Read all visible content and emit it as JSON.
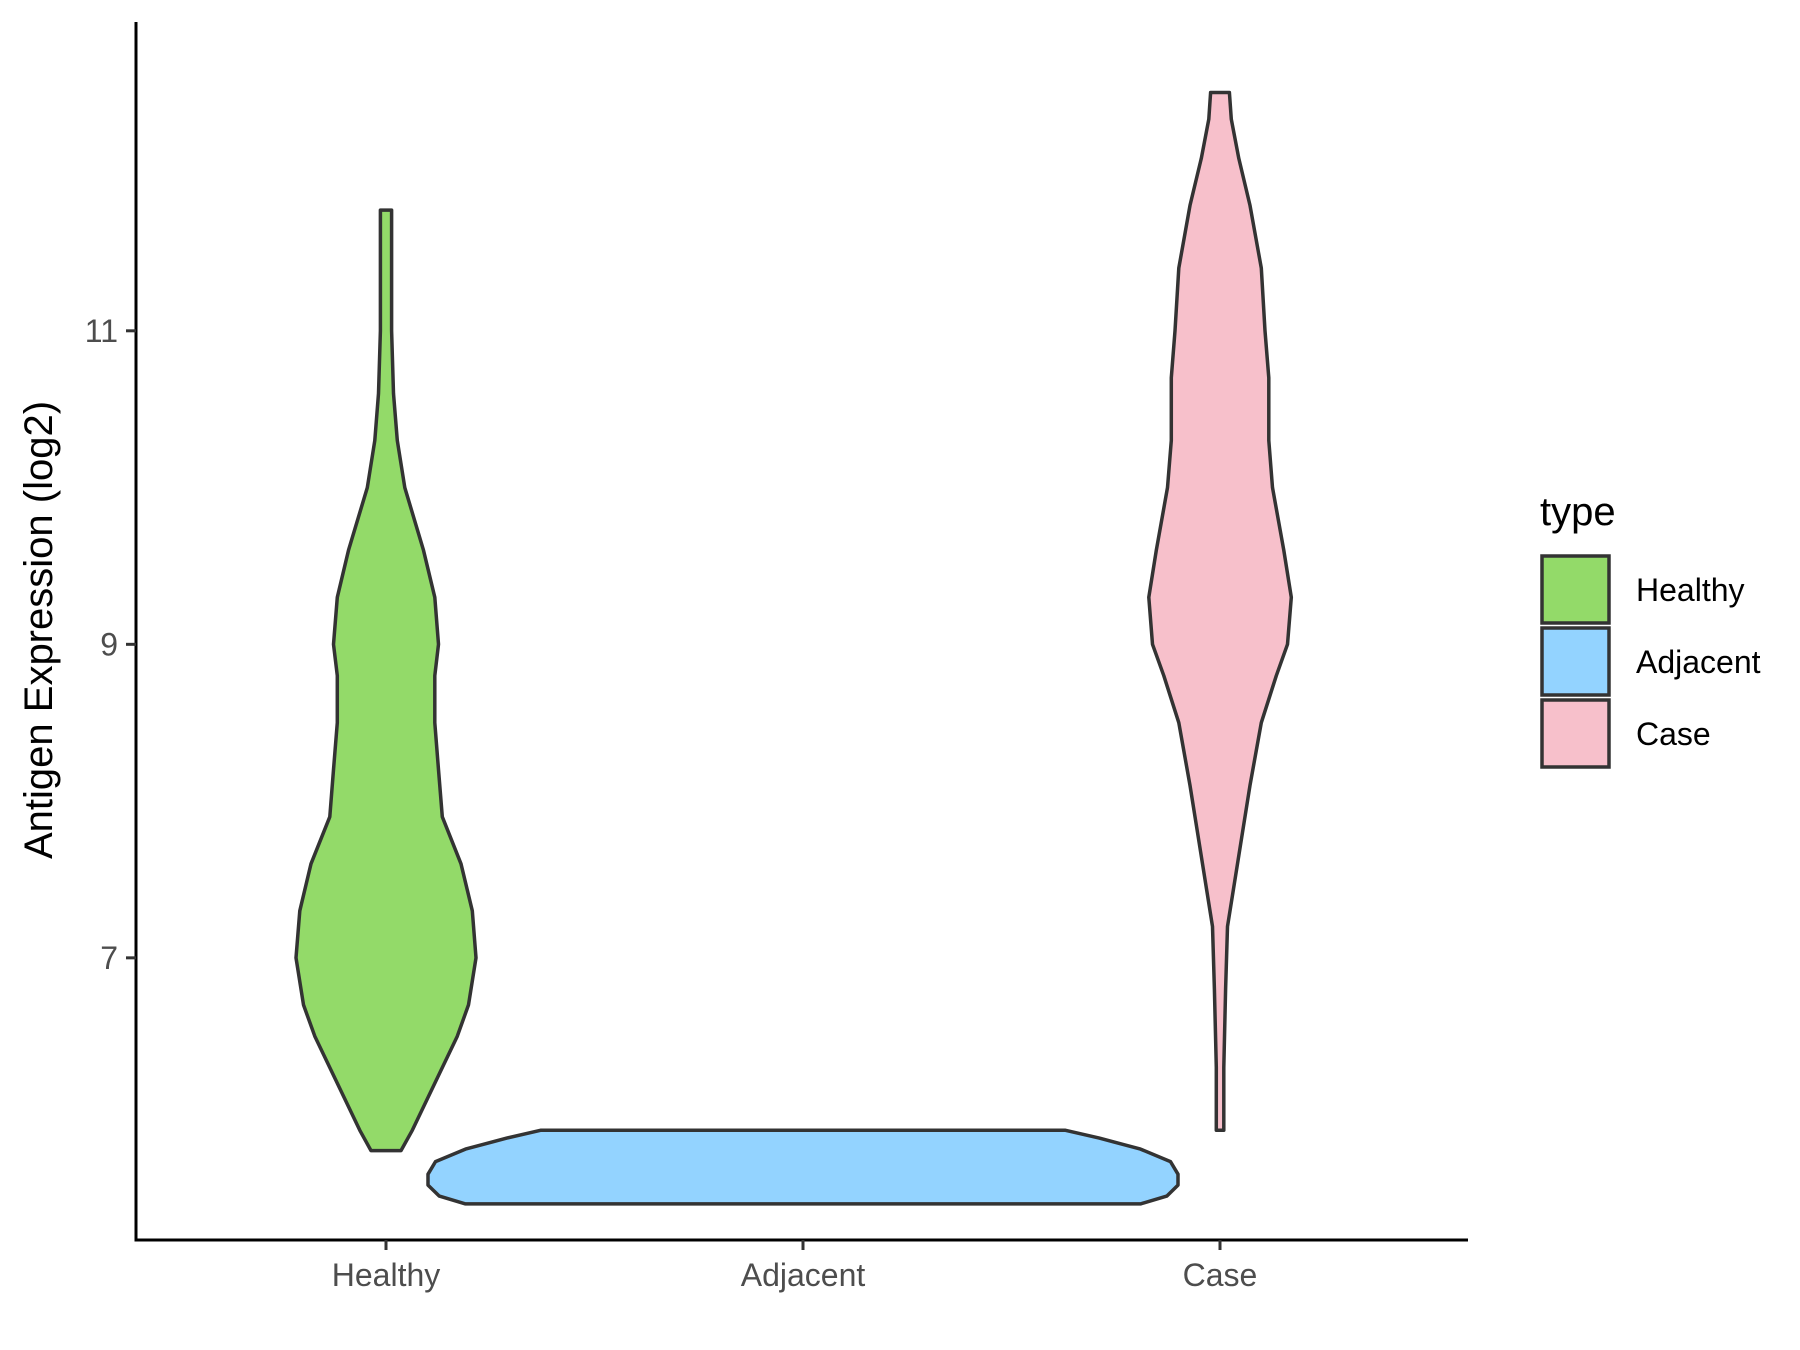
{
  "chart_data": {
    "type": "violin",
    "title": "",
    "xlabel": "",
    "ylabel": "Antigen Expression (log2)",
    "categories": [
      "Healthy",
      "Adjacent",
      "Case"
    ],
    "y_ticks": [
      7,
      9,
      11
    ],
    "ylim": [
      5.2,
      12.97
    ],
    "legend": {
      "title": "type",
      "position": "right",
      "entries": [
        "Healthy",
        "Adjacent",
        "Case"
      ]
    },
    "colors": {
      "Healthy": "#93DA69",
      "Adjacent": "#93D3FF",
      "Case": "#F7C0CB"
    },
    "violins": [
      {
        "name": "Healthy",
        "y_min": 5.77,
        "y_max": 11.77,
        "density_profile": [
          [
            5.77,
            0.04
          ],
          [
            5.9,
            0.07
          ],
          [
            6.2,
            0.13
          ],
          [
            6.5,
            0.19
          ],
          [
            6.7,
            0.22
          ],
          [
            7.0,
            0.24
          ],
          [
            7.3,
            0.23
          ],
          [
            7.6,
            0.2
          ],
          [
            7.9,
            0.15
          ],
          [
            8.2,
            0.14
          ],
          [
            8.5,
            0.13
          ],
          [
            8.8,
            0.13
          ],
          [
            9.0,
            0.14
          ],
          [
            9.3,
            0.13
          ],
          [
            9.6,
            0.1
          ],
          [
            10.0,
            0.05
          ],
          [
            10.3,
            0.03
          ],
          [
            10.6,
            0.02
          ],
          [
            11.0,
            0.015
          ],
          [
            11.4,
            0.015
          ],
          [
            11.77,
            0.015
          ]
        ]
      },
      {
        "name": "Adjacent",
        "y_min": 5.43,
        "y_max": 5.9,
        "density_profile": [
          [
            5.43,
            0.9
          ],
          [
            5.48,
            0.97
          ],
          [
            5.55,
            1.0
          ],
          [
            5.62,
            1.0
          ],
          [
            5.7,
            0.98
          ],
          [
            5.78,
            0.9
          ],
          [
            5.85,
            0.79
          ],
          [
            5.9,
            0.7
          ]
        ]
      },
      {
        "name": "Case",
        "y_min": 5.9,
        "y_max": 12.52,
        "density_profile": [
          [
            5.9,
            0.01
          ],
          [
            6.3,
            0.01
          ],
          [
            6.8,
            0.015
          ],
          [
            7.2,
            0.02
          ],
          [
            7.5,
            0.04
          ],
          [
            7.8,
            0.06
          ],
          [
            8.1,
            0.08
          ],
          [
            8.5,
            0.11
          ],
          [
            8.8,
            0.15
          ],
          [
            9.0,
            0.18
          ],
          [
            9.3,
            0.19
          ],
          [
            9.6,
            0.17
          ],
          [
            10.0,
            0.14
          ],
          [
            10.3,
            0.13
          ],
          [
            10.7,
            0.13
          ],
          [
            11.0,
            0.12
          ],
          [
            11.4,
            0.11
          ],
          [
            11.8,
            0.08
          ],
          [
            12.1,
            0.05
          ],
          [
            12.35,
            0.03
          ],
          [
            12.52,
            0.025
          ]
        ]
      }
    ]
  }
}
